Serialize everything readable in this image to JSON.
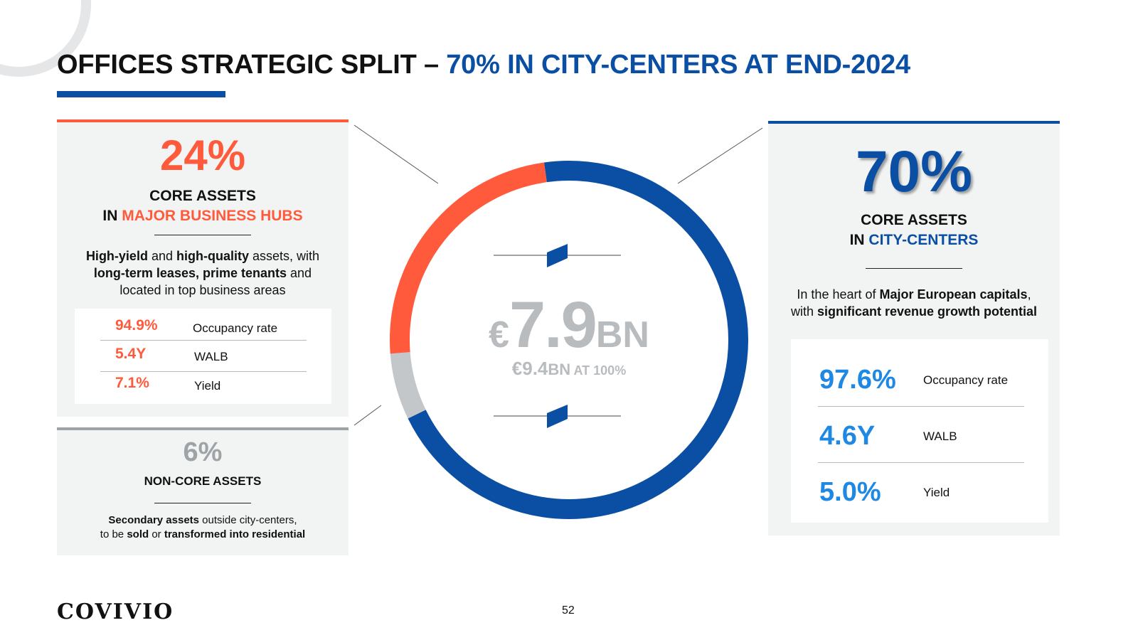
{
  "title": {
    "main": "OFFICES STRATEGIC SPLIT – ",
    "accent": "70% IN CITY-CENTERS AT END-2024"
  },
  "colors": {
    "blue": "#0a4fa3",
    "orange": "#ff5a3c",
    "grey": "#c3c7ca",
    "light_blue": "#1e88e5"
  },
  "left_panel": {
    "pct": "24%",
    "heading_line1": "CORE ASSETS",
    "heading_in": "IN ",
    "heading_accent": "MAJOR BUSINESS HUBS",
    "desc": [
      {
        "b1": "High-yield",
        "t1": " and ",
        "b2": "high-quality",
        "t2": " assets, with"
      },
      {
        "b1": "long-term leases, prime tenants",
        "t1": " and"
      },
      {
        "t1": "located in top business areas"
      }
    ],
    "kpis": [
      {
        "value": "94.9%",
        "label": "Occupancy rate"
      },
      {
        "value": "5.4Y",
        "label": "WALB"
      },
      {
        "value": "7.1%",
        "label": "Yield"
      }
    ]
  },
  "noncore_panel": {
    "pct": "6%",
    "heading": "NON-CORE ASSETS",
    "line1_b": "Secondary assets",
    "line1_t": " outside city-centers,",
    "line2_t1": "to be ",
    "line2_b1": "sold",
    "line2_t2": " or ",
    "line2_b2": "transformed into residential"
  },
  "right_panel": {
    "pct": "70%",
    "heading_line1": "CORE ASSETS",
    "heading_in": "IN ",
    "heading_accent": "CITY-CENTERS",
    "desc_line1_t": "In the heart of ",
    "desc_line1_b": "Major European capitals",
    "desc_line1_end": ",",
    "desc_line2_t": "with ",
    "desc_line2_b": "significant revenue growth potential",
    "kpis": [
      {
        "value": "97.6%",
        "label": "Occupancy rate"
      },
      {
        "value": "4.6Y",
        "label": "WALB"
      },
      {
        "value": "5.0%",
        "label": "Yield"
      }
    ]
  },
  "center": {
    "euro": "€",
    "value": "7.9",
    "unit": "BN",
    "sub_value": "€9.4",
    "sub_unit": "BN",
    "sub_text": " AT 100%"
  },
  "chart_data": {
    "type": "pie",
    "style": "donut",
    "title": "",
    "series": [
      {
        "name": "CORE ASSETS IN CITY-CENTERS",
        "value": 70,
        "color": "#0a4fa3"
      },
      {
        "name": "NON-CORE ASSETS",
        "value": 6,
        "color": "#c3c7ca"
      },
      {
        "name": "CORE ASSETS IN MAJOR BUSINESS HUBS",
        "value": 24,
        "color": "#ff5a3c"
      }
    ],
    "total_label": "€7.9BN"
  },
  "footer": {
    "logo": "COVIVIO",
    "page": "52"
  }
}
